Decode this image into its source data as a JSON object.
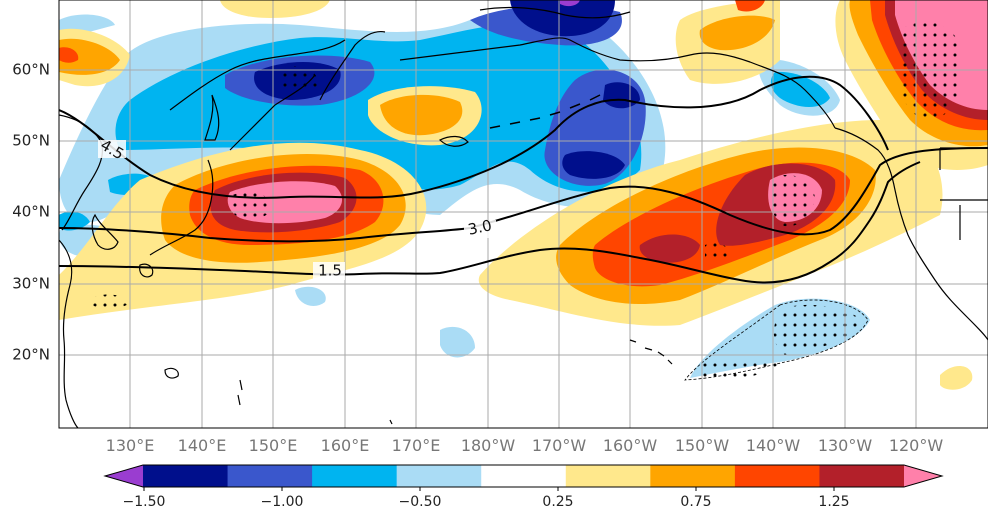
{
  "map": {
    "latitude_labels": [
      "60°N",
      "50°N",
      "40°N",
      "30°N",
      "20°N"
    ],
    "longitude_labels": [
      "130°E",
      "140°E",
      "150°E",
      "160°E",
      "170°E",
      "180°W",
      "170°W",
      "160°W",
      "150°W",
      "140°W",
      "130°W",
      "120°W"
    ],
    "contour_labels": [
      "4.5",
      "3.0",
      "1.5"
    ]
  },
  "colorbar": {
    "tick_labels": [
      "−1.50",
      "−1.00",
      "−0.50",
      "0.25",
      "0.75",
      "1.25"
    ],
    "colors": [
      "#9a3dd0",
      "#000f8c",
      "#3a57cc",
      "#00b4f0",
      "#aadcf5",
      "#ffffff",
      "#ffe88c",
      "#ffa500",
      "#ff4500",
      "#b3202a",
      "#ff80aa"
    ]
  }
}
